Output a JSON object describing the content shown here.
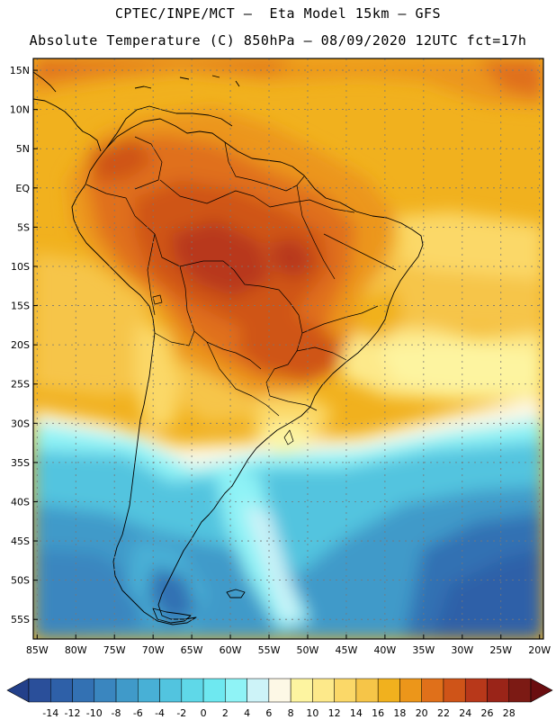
{
  "header": {
    "line1": "CPTEC/INPE/MCT –  Eta Model 15km – GFS",
    "line2": "Absolute Temperature (C) 850hPa – 08/09/2020 12UTC fct=17h"
  },
  "map": {
    "lat_labels": [
      "15N",
      "10N",
      "5N",
      "EQ",
      "5S",
      "10S",
      "15S",
      "20S",
      "25S",
      "30S",
      "35S",
      "40S",
      "45S",
      "50S",
      "55S"
    ],
    "lat_values": [
      15,
      10,
      5,
      0,
      -5,
      -10,
      -15,
      -20,
      -25,
      -30,
      -35,
      -40,
      -45,
      -50,
      -55
    ],
    "lon_labels": [
      "85W",
      "80W",
      "75W",
      "70W",
      "65W",
      "60W",
      "55W",
      "50W",
      "45W",
      "40W",
      "35W",
      "30W",
      "25W",
      "20W"
    ],
    "lon_values": [
      -85,
      -80,
      -75,
      -70,
      -65,
      -60,
      -55,
      -50,
      -45,
      -40,
      -35,
      -30,
      -25,
      -20
    ],
    "extent": {
      "lon_min": -85.5,
      "lon_max": -19.5,
      "lat_min": -57.5,
      "lat_max": 16.5
    }
  },
  "colorbar": {
    "bounds": [
      "-14",
      "-12",
      "-10",
      "-8",
      "-6",
      "-4",
      "-2",
      "0",
      "2",
      "4",
      "6",
      "8",
      "10",
      "12",
      "14",
      "16",
      "18",
      "20",
      "22",
      "24",
      "26",
      "28"
    ],
    "colors": [
      "#2a4f9a",
      "#2e60a8",
      "#3371b3",
      "#3a86bf",
      "#409ac9",
      "#48b0d6",
      "#52c4df",
      "#5fd8e8",
      "#6ee8f0",
      "#8ff3f6",
      "#cdf3f8",
      "#fdf8e6",
      "#fdf4a0",
      "#fde98a",
      "#fbd868",
      "#f6c548",
      "#f1b11e",
      "#ec961a",
      "#e0701a",
      "#cf5418",
      "#b8381a",
      "#9a2418",
      "#7c1a14"
    ],
    "under_color": "#23408a",
    "over_color": "#6a0e10",
    "units": "°C"
  }
}
